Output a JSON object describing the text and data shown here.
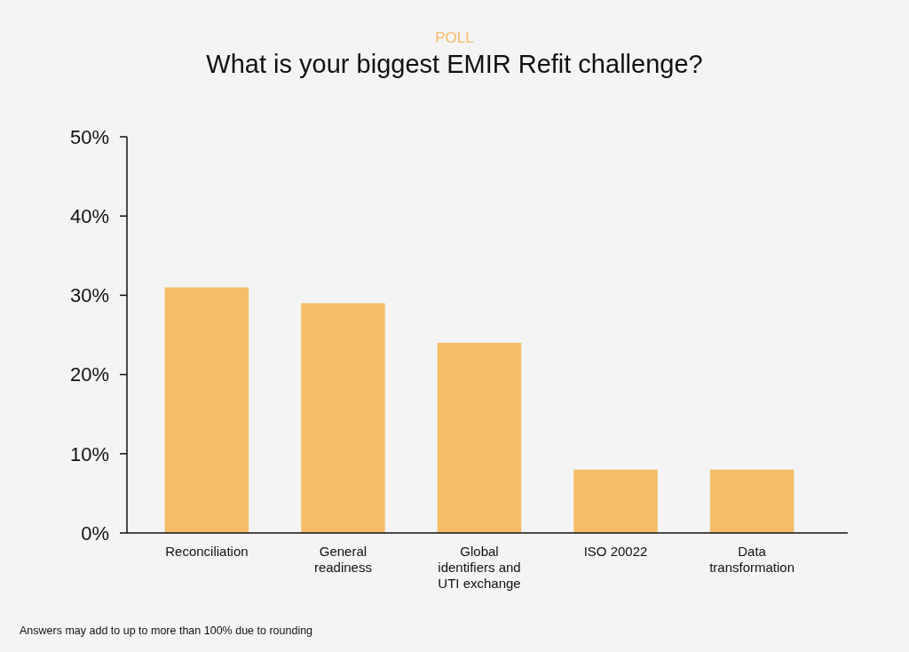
{
  "chart_data": {
    "type": "bar",
    "subtitle": "POLL",
    "title": "What is your biggest EMIR Refit challenge?",
    "categories": [
      "Reconciliation",
      "General readiness",
      "Global identifiers and UTI exchange",
      "ISO 20022",
      "Data transformation"
    ],
    "values": [
      31,
      29,
      24,
      8,
      8
    ],
    "color": "#f4bd66",
    "ylim": [
      0,
      50
    ],
    "yticks": [
      {
        "value": 0,
        "label": "0%"
      },
      {
        "value": 10,
        "label": "10%"
      },
      {
        "value": 20,
        "label": "20%"
      },
      {
        "value": 30,
        "label": "30%"
      },
      {
        "value": 40,
        "label": "40%"
      },
      {
        "value": 50,
        "label": "50%"
      }
    ],
    "grid": false,
    "annotations": [
      "Answers may add to up to more than 100% due to rounding"
    ]
  }
}
